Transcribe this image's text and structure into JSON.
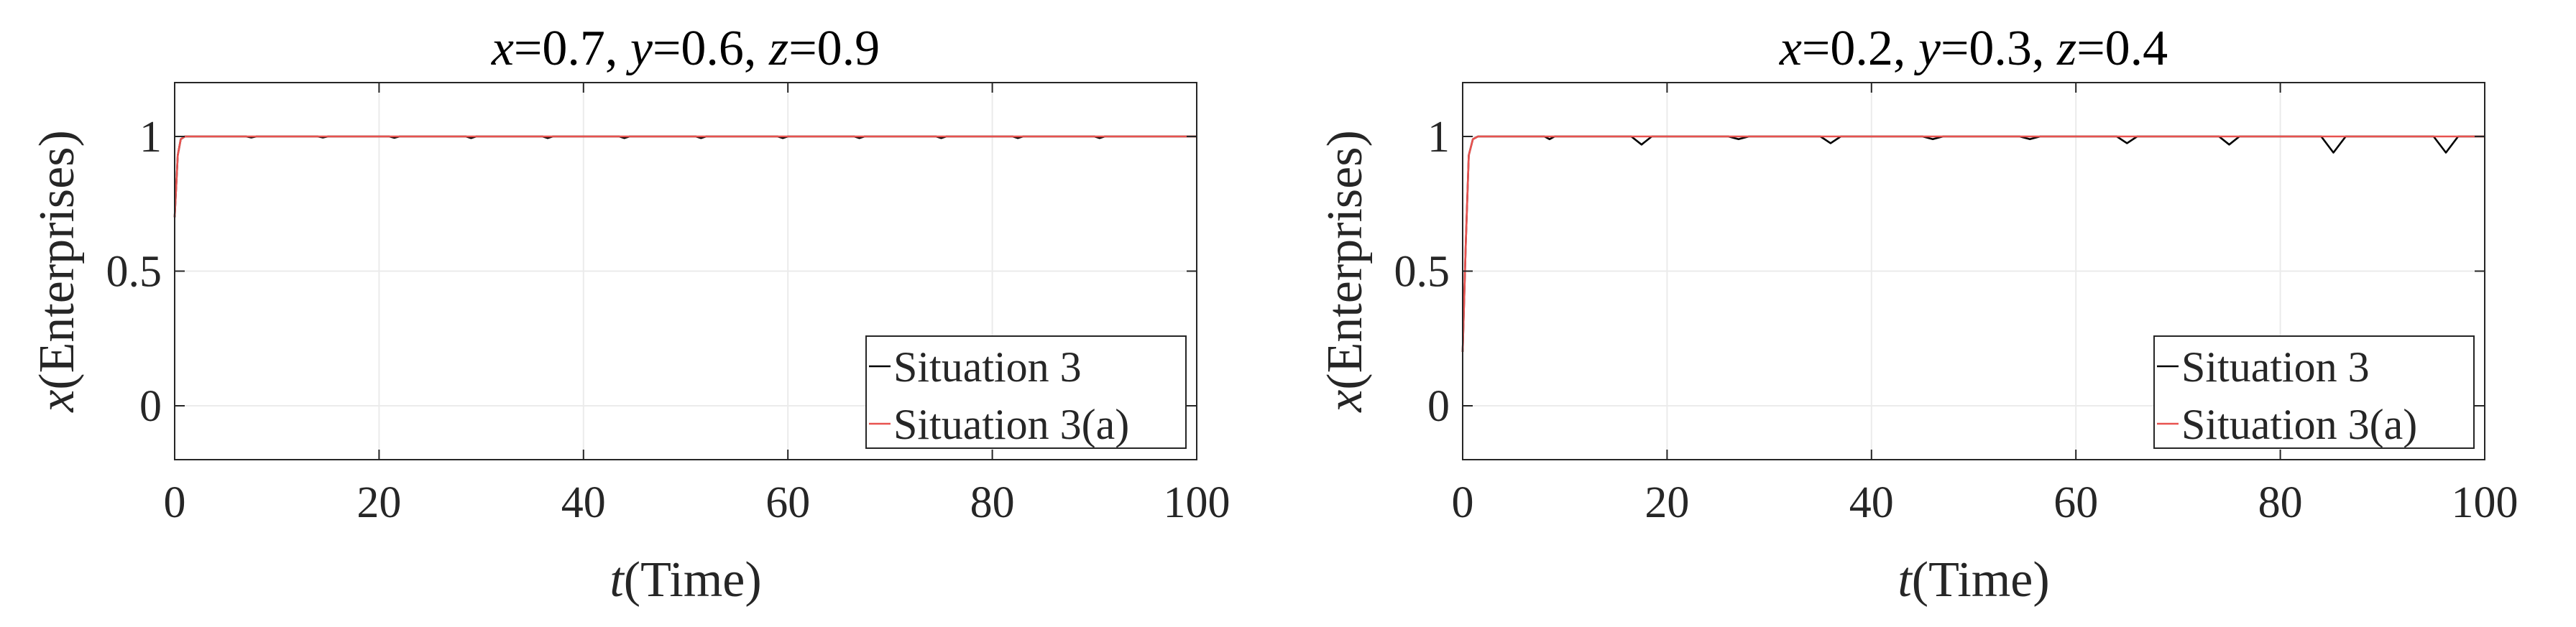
{
  "chart_data": [
    {
      "type": "line",
      "title_parts": [
        {
          "text": "x",
          "italic": true
        },
        {
          "text": "=0.7, ",
          "italic": false
        },
        {
          "text": "y",
          "italic": true
        },
        {
          "text": "=0.6, ",
          "italic": false
        },
        {
          "text": "z",
          "italic": true
        },
        {
          "text": "=0.9",
          "italic": false
        }
      ],
      "xlabel_parts": [
        {
          "text": "t",
          "italic": true
        },
        {
          "text": "(Time)",
          "italic": false
        }
      ],
      "ylabel_parts": [
        {
          "text": "x",
          "italic": true
        },
        {
          "text": "(Enterprises)",
          "italic": false
        }
      ],
      "xlim": [
        0,
        100
      ],
      "ylim": [
        -0.2,
        1.2
      ],
      "xticks": [
        0,
        20,
        40,
        60,
        80,
        100
      ],
      "xtick_labels": [
        "0",
        "20",
        "40",
        "60",
        "80",
        "100"
      ],
      "yticks": [
        0,
        0.5,
        1
      ],
      "ytick_labels": [
        "0",
        "0.5",
        "1"
      ],
      "grid": true,
      "legend_position": "bottom-right",
      "series": [
        {
          "name": "Situation 3",
          "color": "#000000",
          "x": [
            0,
            0.3,
            0.6,
            1,
            1.5,
            2,
            7,
            7.5,
            8,
            14,
            14.5,
            15,
            21,
            21.5,
            22,
            28.5,
            29,
            29.5,
            36,
            36.5,
            37,
            43.5,
            44,
            44.5,
            51,
            51.5,
            52,
            59,
            59.5,
            60,
            66.5,
            67,
            67.5,
            74.5,
            75,
            75.5,
            82,
            82.5,
            83,
            90,
            90.5,
            91,
            100
          ],
          "y": [
            0.7,
            0.93,
            0.99,
            1,
            1,
            1,
            1,
            0.996,
            1,
            1,
            0.996,
            1,
            1,
            0.995,
            1,
            1,
            0.994,
            1,
            1,
            0.994,
            1,
            1,
            0.994,
            1,
            1,
            0.994,
            1,
            1,
            0.994,
            1,
            1,
            0.994,
            1,
            1,
            0.994,
            1,
            1,
            0.994,
            1,
            1,
            0.994,
            1,
            1
          ]
        },
        {
          "name": "Situation 3(a)",
          "color": "#e8524f",
          "x": [
            0,
            0.3,
            0.6,
            1,
            1.5,
            2,
            100
          ],
          "y": [
            0.7,
            0.93,
            0.99,
            1,
            1,
            1,
            1
          ]
        }
      ]
    },
    {
      "type": "line",
      "title_parts": [
        {
          "text": "x",
          "italic": true
        },
        {
          "text": "=0.2, ",
          "italic": false
        },
        {
          "text": "y",
          "italic": true
        },
        {
          "text": "=0.3, ",
          "italic": false
        },
        {
          "text": "z",
          "italic": true
        },
        {
          "text": "=0.4",
          "italic": false
        }
      ],
      "xlabel_parts": [
        {
          "text": "t",
          "italic": true
        },
        {
          "text": "(Time)",
          "italic": false
        }
      ],
      "ylabel_parts": [
        {
          "text": "x",
          "italic": true
        },
        {
          "text": "(Enterprises)",
          "italic": false
        }
      ],
      "xlim": [
        0,
        100
      ],
      "ylim": [
        -0.2,
        1.2
      ],
      "xticks": [
        0,
        20,
        40,
        60,
        80,
        100
      ],
      "xtick_labels": [
        "0",
        "20",
        "40",
        "60",
        "80",
        "100"
      ],
      "yticks": [
        0,
        0.5,
        1
      ],
      "ytick_labels": [
        "0",
        "0.5",
        "1"
      ],
      "grid": true,
      "legend_position": "bottom-right",
      "series": [
        {
          "name": "Situation 3",
          "color": "#000000",
          "x": [
            0,
            0.3,
            0.6,
            1,
            1.5,
            2,
            8,
            8.5,
            9,
            16.5,
            17.5,
            18.5,
            26,
            27,
            28,
            35,
            36,
            37,
            45,
            46,
            47,
            54.5,
            55.5,
            56.5,
            64,
            65,
            66,
            74,
            75,
            76,
            84,
            85.2,
            86.4,
            95,
            96.2,
            97.4,
            100
          ],
          "y": [
            0.2,
            0.6,
            0.93,
            0.99,
            1,
            1,
            1,
            0.99,
            1,
            1,
            0.97,
            1,
            1,
            0.99,
            1,
            1,
            0.975,
            1,
            1,
            0.99,
            1,
            1,
            0.99,
            1,
            1,
            0.975,
            1,
            1,
            0.97,
            1,
            1,
            0.94,
            1,
            1,
            0.94,
            1,
            1
          ]
        },
        {
          "name": "Situation 3(a)",
          "color": "#e8524f",
          "x": [
            0,
            0.3,
            0.6,
            1,
            1.5,
            2,
            100
          ],
          "y": [
            0.2,
            0.6,
            0.93,
            0.99,
            1,
            1,
            1
          ]
        }
      ]
    }
  ]
}
